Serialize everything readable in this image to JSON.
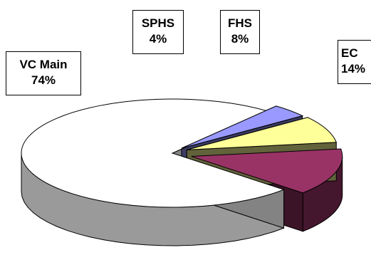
{
  "chart_data": {
    "type": "pie",
    "style": "3d-exploded",
    "slices": [
      {
        "label": "EC",
        "value": 14,
        "display": "14%",
        "color": "#993366"
      },
      {
        "label": "VC Main",
        "value": 74,
        "display": "74%",
        "color": "#ffffff"
      },
      {
        "label": "SPHS",
        "value": 4,
        "display": "4%",
        "color": "#9999ff"
      },
      {
        "label": "FHS",
        "value": 8,
        "display": "8%",
        "color": "#ffff99"
      }
    ]
  }
}
